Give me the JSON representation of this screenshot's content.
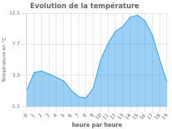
{
  "chart_data": {
    "type": "area",
    "title": "Evolution de la température",
    "xlabel": "heure par heure",
    "ylabel": "Température en °C",
    "x": [
      0,
      1,
      2,
      3,
      4,
      5,
      6,
      7,
      8,
      9,
      10,
      11,
      12,
      13,
      14,
      15,
      16,
      17,
      18,
      19
    ],
    "values": [
      1.2,
      3.7,
      3.9,
      3.5,
      3.0,
      2.5,
      1.2,
      0.3,
      0.1,
      1.5,
      5.5,
      7.8,
      9.5,
      10.2,
      11.5,
      11.8,
      11.0,
      9.0,
      5.5,
      2.3
    ],
    "xlim": [
      0,
      19
    ],
    "xticks": [
      0,
      1,
      2,
      3,
      4,
      5,
      6,
      7,
      8,
      9,
      10,
      11,
      12,
      13,
      14,
      15,
      16,
      17,
      18,
      19
    ],
    "ylim": [
      -1.1,
      12.1
    ],
    "yticks": [
      -1.1,
      3.3,
      7.7,
      12.1
    ],
    "grid": true
  }
}
